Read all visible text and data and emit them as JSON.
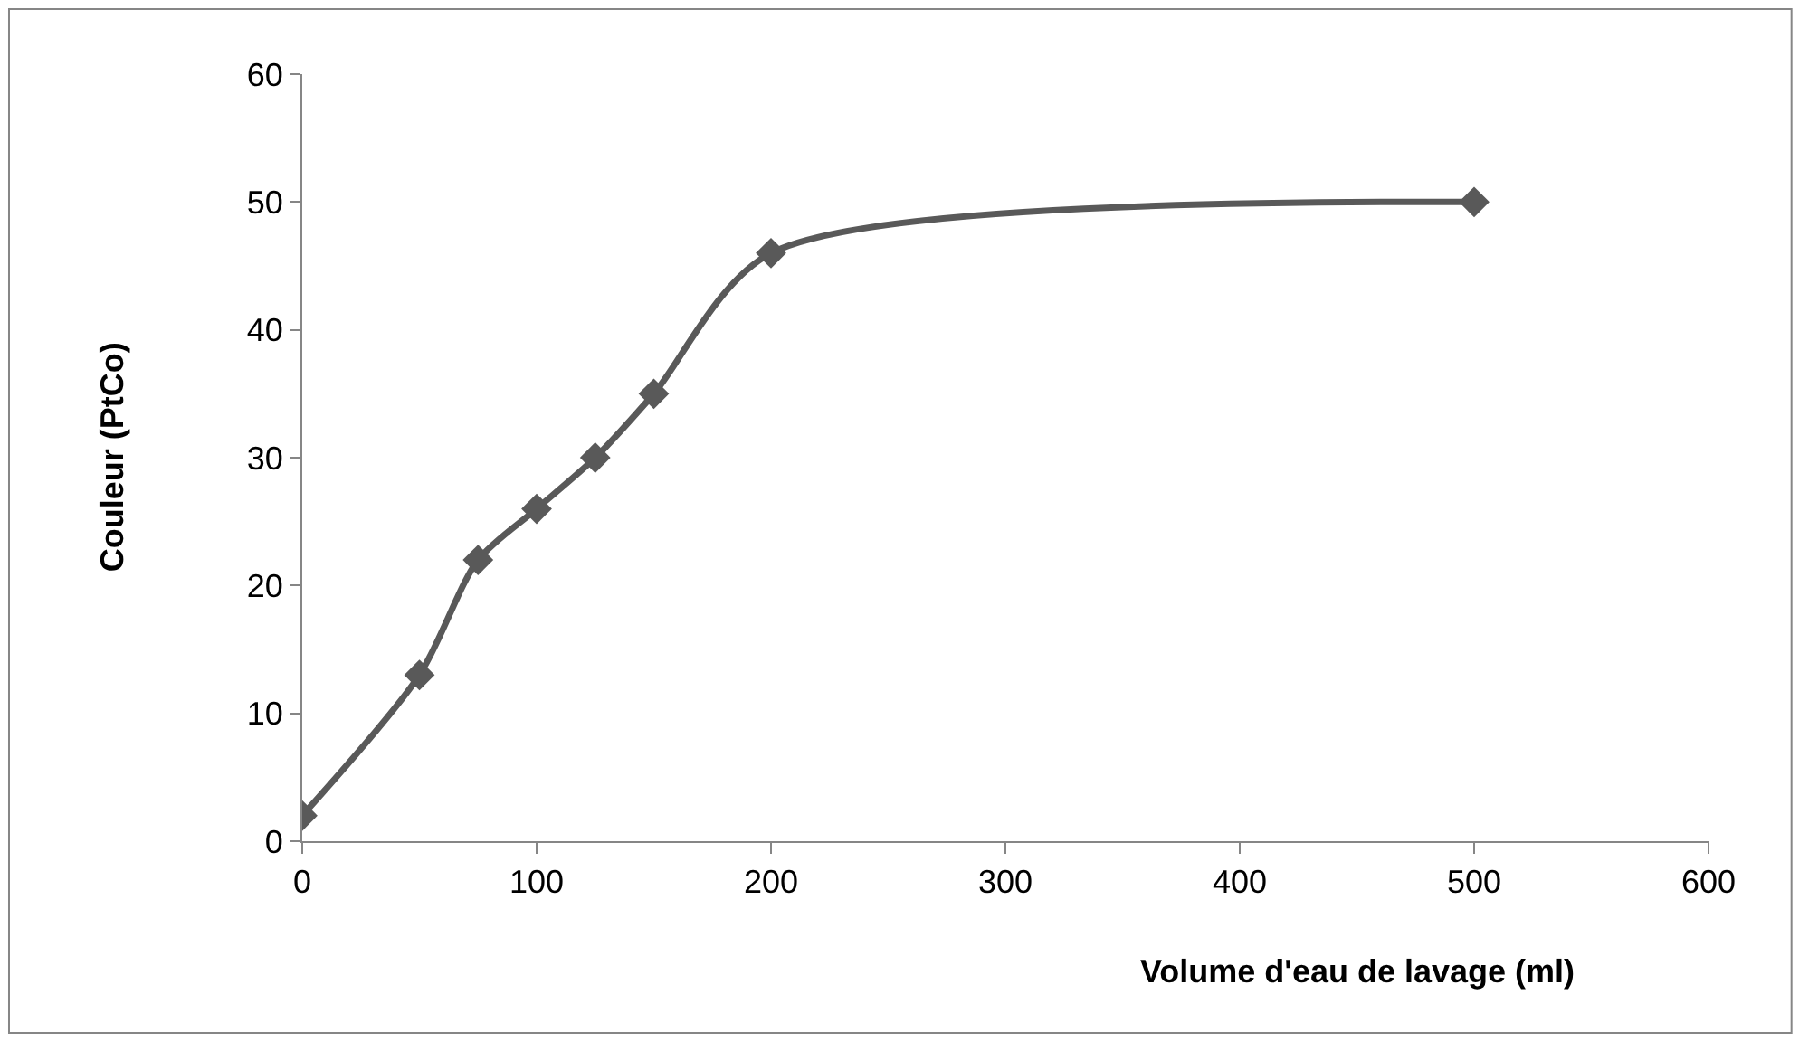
{
  "chart_data": {
    "type": "line",
    "xlabel": "Volume d'eau de lavage (ml)",
    "ylabel": "Couleur (PtCo)",
    "x": [
      0,
      50,
      75,
      100,
      125,
      150,
      200,
      500
    ],
    "series": [
      {
        "color": "#595959",
        "values": [
          2,
          13,
          22,
          26,
          30,
          35,
          46,
          50
        ]
      }
    ],
    "xlim": [
      0,
      600
    ],
    "xticks": [
      0,
      100,
      200,
      300,
      400,
      500,
      600
    ],
    "ylim": [
      0,
      60
    ],
    "yticks": [
      0,
      10,
      20,
      30,
      40,
      50,
      60
    ],
    "grid": false,
    "marker": "diamond",
    "line_style": "solid"
  }
}
